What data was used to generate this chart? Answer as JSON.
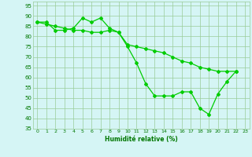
{
  "line1_x": [
    0,
    1,
    2,
    3,
    4,
    5,
    6,
    7,
    8,
    9,
    10,
    11,
    12,
    13,
    14,
    15,
    16,
    17,
    18,
    19,
    20,
    21,
    22
  ],
  "line1_y": [
    87,
    87,
    83,
    83,
    84,
    89,
    87,
    89,
    84,
    82,
    75,
    67,
    57,
    51,
    51,
    51,
    53,
    53,
    45,
    42,
    52,
    58,
    63
  ],
  "line2_x": [
    0,
    1,
    2,
    3,
    4,
    5,
    6,
    7,
    8,
    9,
    10,
    11,
    12,
    13,
    14,
    15,
    16,
    17,
    18,
    19,
    20,
    21,
    22
  ],
  "line2_y": [
    87,
    86,
    85,
    84,
    83,
    83,
    82,
    82,
    83,
    82,
    76,
    75,
    74,
    73,
    72,
    70,
    68,
    67,
    65,
    64,
    63,
    63,
    63
  ],
  "line_color": "#00cc00",
  "bg_color": "#d5f5f5",
  "grid_color": "#99cc99",
  "xlabel": "Humidité relative (%)",
  "ylim": [
    35,
    97
  ],
  "xlim": [
    -0.5,
    23.5
  ],
  "yticks": [
    35,
    40,
    45,
    50,
    55,
    60,
    65,
    70,
    75,
    80,
    85,
    90,
    95
  ],
  "xticks": [
    0,
    1,
    2,
    3,
    4,
    5,
    6,
    7,
    8,
    9,
    10,
    11,
    12,
    13,
    14,
    15,
    16,
    17,
    18,
    19,
    20,
    21,
    22,
    23
  ],
  "xtick_labels": [
    "0",
    "1",
    "2",
    "3",
    "4",
    "5",
    "6",
    "7",
    "8",
    "9",
    "10",
    "11",
    "12",
    "13",
    "14",
    "15",
    "16",
    "17",
    "18",
    "19",
    "20",
    "21",
    "22",
    "23"
  ]
}
